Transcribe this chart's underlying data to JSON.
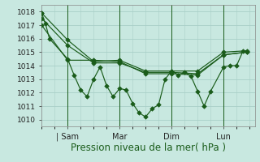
{
  "background_color": "#c8e8e0",
  "grid_color": "#a8cfc8",
  "line_color": "#1a5c1a",
  "xlabel": "Pression niveau de la mer( hPa )",
  "xlabel_fontsize": 8.5,
  "ylim": [
    1009.5,
    1018.5
  ],
  "yticks": [
    1010,
    1011,
    1012,
    1013,
    1014,
    1015,
    1016,
    1017,
    1018
  ],
  "xtick_labels": [
    "| Sam",
    "Mar",
    "Dim",
    "Lun"
  ],
  "xtick_positions": [
    1,
    3,
    5,
    7
  ],
  "xlim": [
    0,
    8.2
  ],
  "line1_x": [
    0,
    0.15,
    0.3,
    1.0,
    1.25,
    1.5,
    1.75,
    2.0,
    2.25,
    2.5,
    2.75,
    3.0,
    3.25,
    3.5,
    3.75,
    4.0,
    4.25,
    4.5,
    4.75,
    5.0,
    5.25,
    5.5,
    5.75,
    6.0,
    6.25,
    6.5,
    7.0,
    7.25,
    7.5,
    7.75
  ],
  "line1_y": [
    1017.9,
    1017.1,
    1016.0,
    1014.5,
    1013.3,
    1012.2,
    1011.7,
    1013.0,
    1013.9,
    1012.5,
    1011.7,
    1012.3,
    1012.2,
    1011.2,
    1010.5,
    1010.2,
    1010.8,
    1011.1,
    1013.0,
    1013.6,
    1013.3,
    1013.5,
    1013.2,
    1012.1,
    1011.0,
    1012.1,
    1013.9,
    1014.0,
    1014.0,
    1015.1
  ],
  "line2_x": [
    0,
    1.0,
    2.0,
    3.0,
    4.0,
    5.0,
    6.0,
    7.0,
    7.9
  ],
  "line2_y": [
    1017.9,
    1015.9,
    1014.3,
    1014.4,
    1013.6,
    1013.6,
    1013.6,
    1015.0,
    1015.1
  ],
  "line3_x": [
    0,
    1.0,
    2.0,
    3.0,
    4.0,
    5.0,
    6.0,
    7.0,
    7.9
  ],
  "line3_y": [
    1017.5,
    1015.5,
    1014.2,
    1014.2,
    1013.5,
    1013.5,
    1013.4,
    1014.8,
    1015.0
  ],
  "line4_x": [
    0,
    1.0,
    2.0,
    3.0,
    4.0,
    5.0,
    6.0,
    7.0,
    7.9
  ],
  "line4_y": [
    1017.0,
    1014.4,
    1014.4,
    1014.3,
    1013.4,
    1013.4,
    1013.3,
    1014.8,
    1015.0
  ],
  "vlines_x": [
    1.0,
    3.0,
    5.0,
    7.0
  ]
}
